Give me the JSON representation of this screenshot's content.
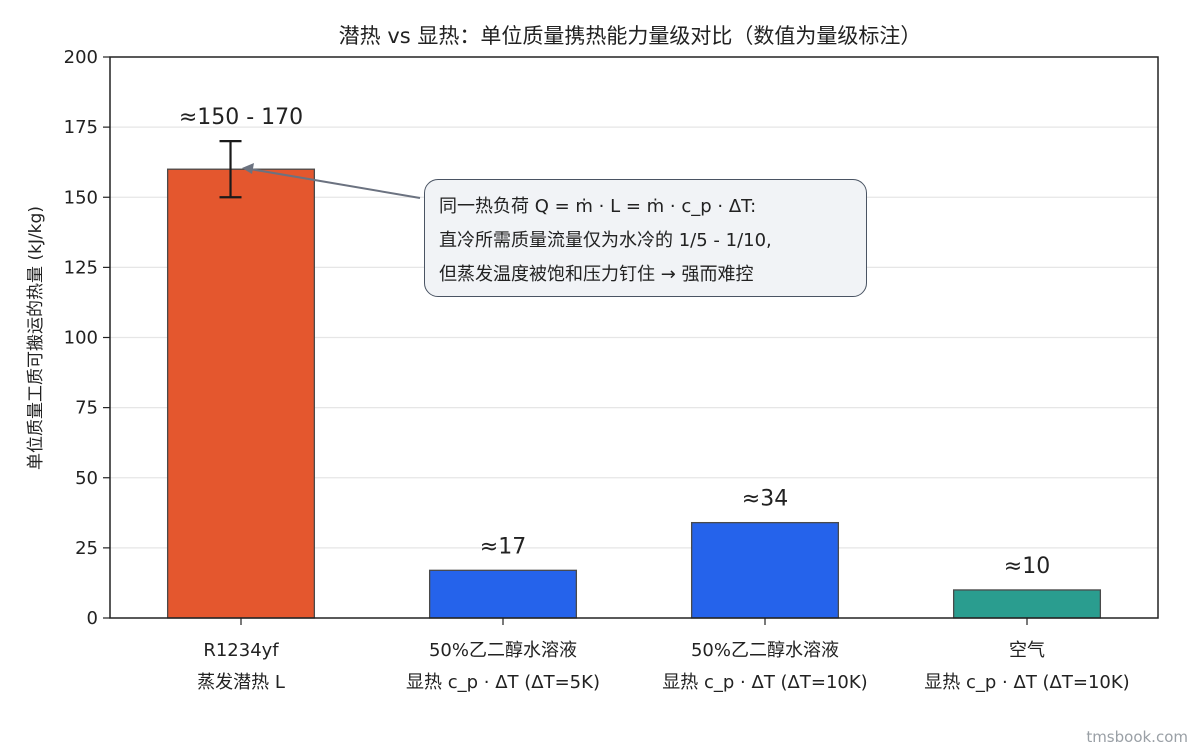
{
  "chart_data": {
    "type": "bar",
    "title": "潜热 vs 显热：单位质量携热能力量级对比（数值为量级标注）",
    "ylabel": "单位质量工质可搬运的热量 (kJ/kg)",
    "xlabel": "",
    "ylim": [
      0,
      200
    ],
    "yticks": [
      0,
      25,
      50,
      75,
      100,
      125,
      150,
      175,
      200
    ],
    "grid": true,
    "categories": [
      [
        "R1234yf",
        "蒸发潜热 L"
      ],
      [
        "50%乙二醇水溶液",
        "显热 c_p · ΔT (ΔT=5K)"
      ],
      [
        "50%乙二醇水溶液",
        "显热 c_p · ΔT (ΔT=10K)"
      ],
      [
        "空气",
        "显热 c_p · ΔT (ΔT=10K)"
      ]
    ],
    "values": [
      160,
      17,
      34,
      10
    ],
    "error_range": [
      150,
      170
    ],
    "data_labels": [
      "≈150 - 170",
      "≈17",
      "≈34",
      "≈10"
    ],
    "colors": [
      "#e4572e",
      "#2563eb",
      "#2563eb",
      "#2a9d8f"
    ]
  },
  "annotation": {
    "lines": [
      "同一热负荷 Q = ṁ · L = ṁ · c_p · ΔT:",
      "直冷所需质量流量仅为水冷的 1/5 - 1/10,",
      "但蒸发温度被饱和压力钉住 → 强而难控"
    ]
  },
  "watermark": "tmsbook.com"
}
